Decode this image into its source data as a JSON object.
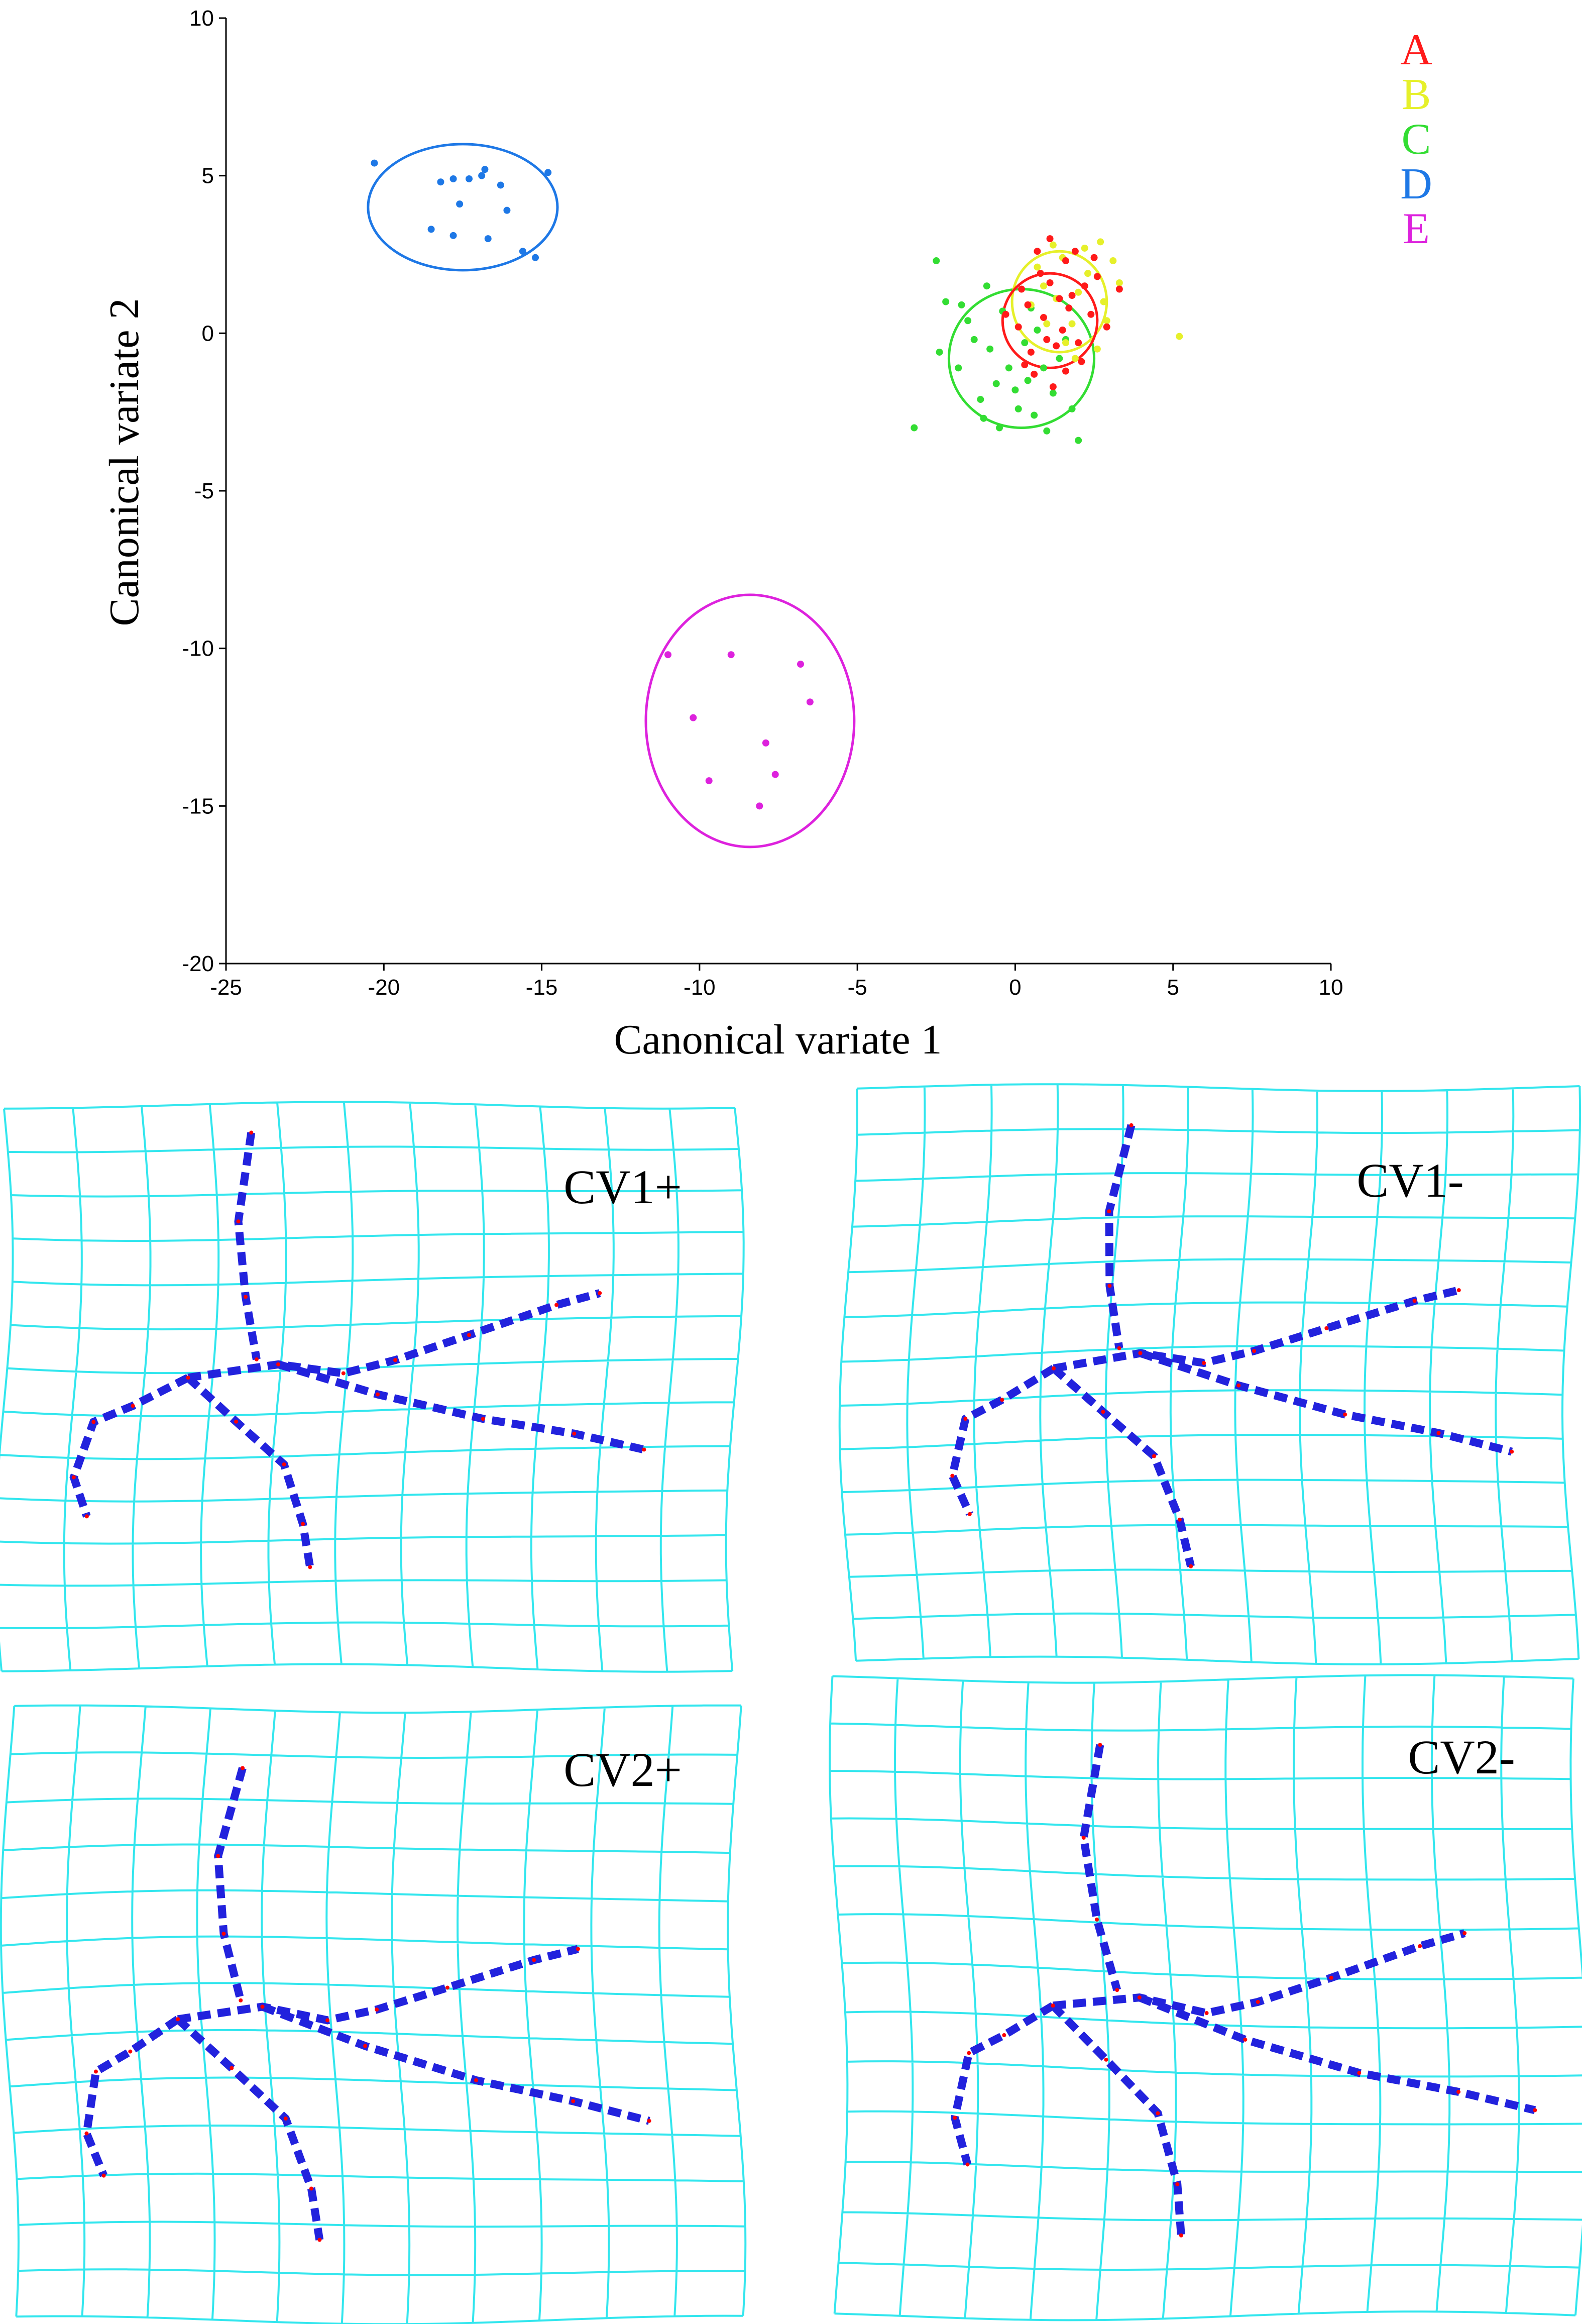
{
  "chart_data": [
    {
      "type": "scatter",
      "title": "",
      "xlabel": "Canonical variate 1",
      "ylabel": "Canonical variate 2",
      "xlim": [
        -25,
        10
      ],
      "ylim": [
        -20,
        10
      ],
      "x_ticks": [
        "-25",
        "-20",
        "-15",
        "-10",
        "-5",
        "0",
        "5",
        "10"
      ],
      "y_ticks": [
        "10",
        "5",
        "0",
        "-5",
        "-10",
        "-15",
        "-20"
      ],
      "legend_position": "top-right",
      "grid": false,
      "series": [
        {
          "name": "A",
          "color": "#ff1a1a",
          "ellipse": {
            "cx": 1.1,
            "cy": 0.4,
            "rx": 1.5,
            "ry": 1.5
          },
          "points": [
            [
              0.4,
              0.9
            ],
            [
              1.1,
              1.6
            ],
            [
              1.8,
              1.2
            ],
            [
              2.4,
              0.6
            ],
            [
              0.1,
              0.2
            ],
            [
              1.3,
              -0.4
            ],
            [
              2.1,
              -0.9
            ],
            [
              0.6,
              -1.3
            ],
            [
              1.6,
              2.3
            ],
            [
              2.6,
              1.8
            ],
            [
              0.9,
              0.5
            ],
            [
              1.5,
              0.1
            ],
            [
              0.2,
              1.4
            ],
            [
              1.9,
              2.6
            ],
            [
              2.9,
              0.2
            ],
            [
              0.5,
              -0.6
            ],
            [
              1.2,
              -1.7
            ],
            [
              1.7,
              0.8
            ],
            [
              0.8,
              1.9
            ],
            [
              2.2,
              1.5
            ],
            [
              1.0,
              -0.2
            ],
            [
              0.3,
              -1.0
            ],
            [
              1.4,
              1.1
            ],
            [
              2.0,
              -0.3
            ],
            [
              3.3,
              1.4
            ],
            [
              0.7,
              2.6
            ],
            [
              1.1,
              3.0
            ],
            [
              -0.3,
              0.6
            ],
            [
              2.5,
              2.4
            ],
            [
              1.6,
              -1.2
            ]
          ]
        },
        {
          "name": "B",
          "color": "#e6f02a",
          "ellipse": {
            "cx": 1.4,
            "cy": 1.0,
            "rx": 1.5,
            "ry": 1.6
          },
          "points": [
            [
              1.5,
              2.4
            ],
            [
              2.3,
              1.9
            ],
            [
              2.8,
              1.0
            ],
            [
              0.9,
              1.5
            ],
            [
              1.8,
              0.3
            ],
            [
              2.6,
              -0.5
            ],
            [
              1.2,
              2.8
            ],
            [
              3.1,
              2.3
            ],
            [
              0.5,
              0.9
            ],
            [
              2.0,
              1.3
            ],
            [
              1.6,
              -0.3
            ],
            [
              2.9,
              0.4
            ],
            [
              1.0,
              0.3
            ],
            [
              2.2,
              2.7
            ],
            [
              3.3,
              1.6
            ],
            [
              0.7,
              2.1
            ],
            [
              5.2,
              -0.1
            ],
            [
              1.9,
              -0.8
            ],
            [
              2.7,
              2.9
            ],
            [
              1.3,
              1.1
            ]
          ]
        },
        {
          "name": "C",
          "color": "#33dd33",
          "ellipse": {
            "cx": 0.2,
            "cy": -0.8,
            "rx": 2.3,
            "ry": 2.2
          },
          "points": [
            [
              -2.2,
              1.0
            ],
            [
              -1.5,
              0.4
            ],
            [
              -0.8,
              -0.5
            ],
            [
              0.0,
              -1.8
            ],
            [
              0.6,
              -2.6
            ],
            [
              1.2,
              -1.9
            ],
            [
              -1.8,
              -1.1
            ],
            [
              -0.4,
              0.7
            ],
            [
              0.3,
              -0.3
            ],
            [
              -1.1,
              -2.1
            ],
            [
              0.9,
              -1.1
            ],
            [
              1.6,
              -0.2
            ],
            [
              -3.2,
              -3.0
            ],
            [
              -0.5,
              -3.0
            ],
            [
              1.0,
              -3.1
            ],
            [
              2.0,
              -3.4
            ],
            [
              -2.5,
              2.3
            ],
            [
              -0.9,
              1.5
            ],
            [
              0.5,
              0.8
            ],
            [
              -1.3,
              -0.2
            ],
            [
              0.1,
              -2.4
            ],
            [
              -2.4,
              -0.6
            ],
            [
              1.8,
              -2.4
            ],
            [
              -0.2,
              -1.1
            ],
            [
              0.7,
              0.1
            ],
            [
              -1.7,
              0.9
            ],
            [
              -0.6,
              -1.6
            ],
            [
              1.4,
              -0.8
            ],
            [
              -1.0,
              -2.7
            ],
            [
              0.4,
              -1.5
            ]
          ]
        },
        {
          "name": "D",
          "color": "#1e78e6",
          "ellipse": {
            "cx": -17.5,
            "cy": 4.0,
            "rx": 3.0,
            "ry": 2.0
          },
          "points": [
            [
              -20.3,
              5.4
            ],
            [
              -18.2,
              4.8
            ],
            [
              -17.8,
              4.9
            ],
            [
              -17.3,
              4.9
            ],
            [
              -16.9,
              5.0
            ],
            [
              -16.8,
              5.2
            ],
            [
              -16.3,
              4.7
            ],
            [
              -17.6,
              4.1
            ],
            [
              -16.1,
              3.9
            ],
            [
              -18.5,
              3.3
            ],
            [
              -17.8,
              3.1
            ],
            [
              -16.7,
              3.0
            ],
            [
              -15.6,
              2.6
            ],
            [
              -15.2,
              2.4
            ],
            [
              -14.8,
              5.1
            ]
          ]
        },
        {
          "name": "E",
          "color": "#dd22dd",
          "ellipse": {
            "cx": -8.4,
            "cy": -12.3,
            "rx": 3.3,
            "ry": 4.0
          },
          "points": [
            [
              -11.0,
              -10.2
            ],
            [
              -9.0,
              -10.2
            ],
            [
              -6.8,
              -10.5
            ],
            [
              -6.5,
              -11.7
            ],
            [
              -10.2,
              -12.2
            ],
            [
              -7.9,
              -13.0
            ],
            [
              -7.6,
              -14.0
            ],
            [
              -9.7,
              -14.2
            ],
            [
              -8.1,
              -15.0
            ]
          ]
        }
      ]
    },
    {
      "type": "diagram",
      "panels": [
        {
          "label": "CV1+"
        },
        {
          "label": "CV1-"
        },
        {
          "label": "CV2+"
        },
        {
          "label": "CV2-"
        }
      ],
      "grid_color": "#33e6ee",
      "vector_color": "#2222dd",
      "landmark_color": "#ff0000"
    }
  ]
}
